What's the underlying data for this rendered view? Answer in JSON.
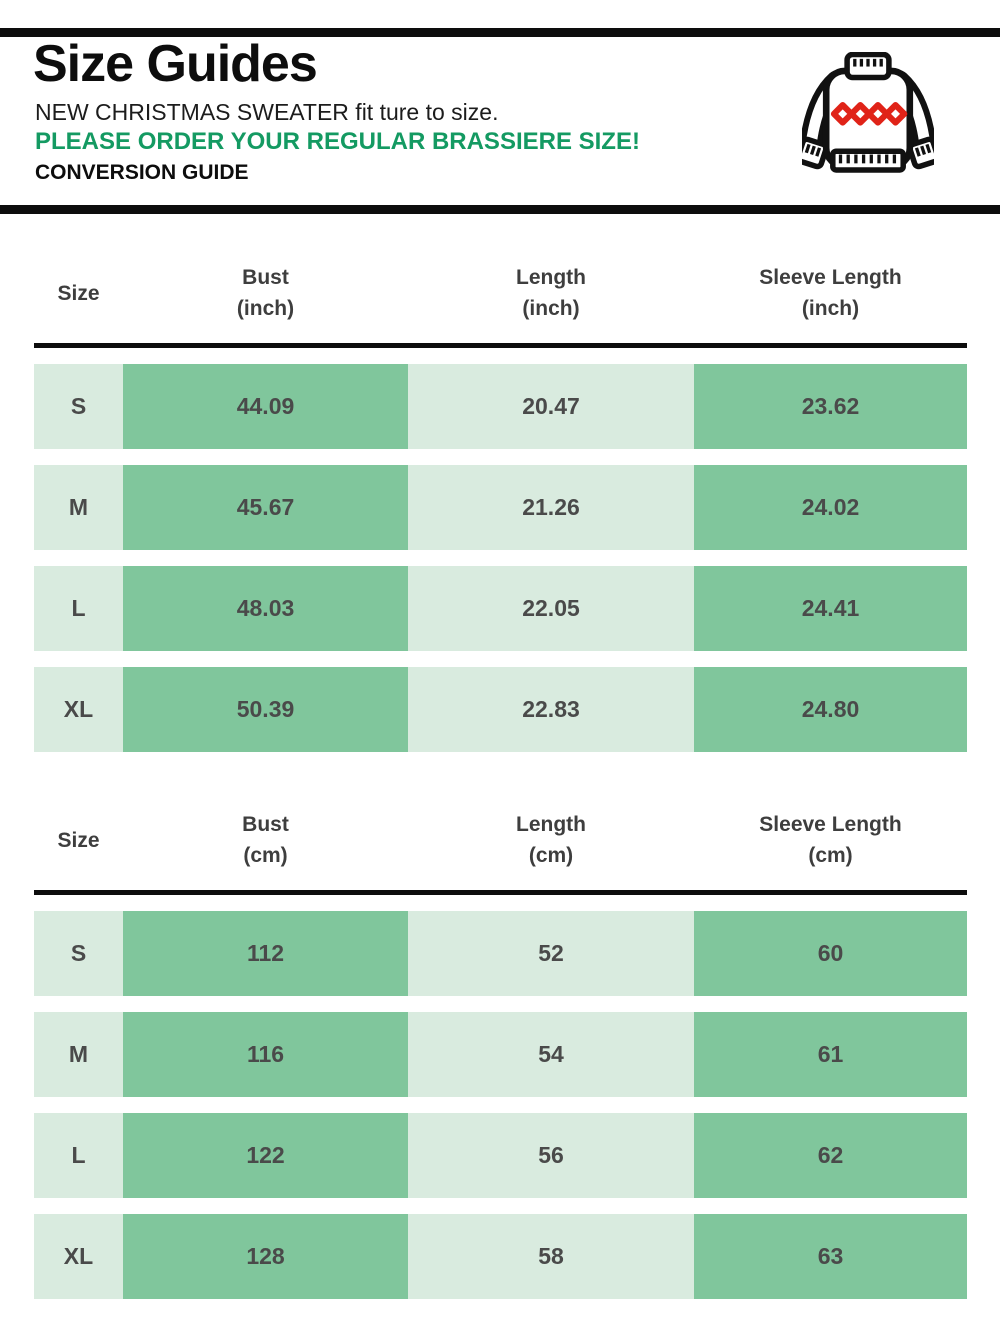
{
  "colors": {
    "green_dark_cell": "#80c69c",
    "green_light_cell": "#d9ebdf",
    "green_highlight_text": "#149a62",
    "divider_black": "#0d0d0d",
    "cell_text": "#4a4a4a",
    "sweater_red": "#e02318"
  },
  "header": {
    "title": "Size Guides",
    "fit_note": "NEW CHRISTMAS SWEATER fit ture to size.",
    "order_note": "PLEASE ORDER YOUR REGULAR BRASSIERE SIZE!",
    "conversion_label": "CONVERSION GUIDE",
    "icon": "christmas-sweater-icon"
  },
  "tables": [
    {
      "id": "inch",
      "columns": [
        {
          "label": "Size",
          "unit": ""
        },
        {
          "label": "Bust",
          "unit": "(inch)"
        },
        {
          "label": "Length",
          "unit": "(inch)"
        },
        {
          "label": "Sleeve Length",
          "unit": "(inch)"
        }
      ],
      "rows": [
        {
          "size": "S",
          "values": [
            "44.09",
            "20.47",
            "23.62"
          ]
        },
        {
          "size": "M",
          "values": [
            "45.67",
            "21.26",
            "24.02"
          ]
        },
        {
          "size": "L",
          "values": [
            "48.03",
            "22.05",
            "24.41"
          ]
        },
        {
          "size": "XL",
          "values": [
            "50.39",
            "22.83",
            "24.80"
          ]
        }
      ]
    },
    {
      "id": "cm",
      "columns": [
        {
          "label": "Size",
          "unit": ""
        },
        {
          "label": "Bust",
          "unit": "(cm)"
        },
        {
          "label": "Length",
          "unit": "(cm)"
        },
        {
          "label": "Sleeve Length",
          "unit": "(cm)"
        }
      ],
      "rows": [
        {
          "size": "S",
          "values": [
            "112",
            "52",
            "60"
          ]
        },
        {
          "size": "M",
          "values": [
            "116",
            "54",
            "61"
          ]
        },
        {
          "size": "L",
          "values": [
            "122",
            "56",
            "62"
          ]
        },
        {
          "size": "XL",
          "values": [
            "128",
            "58",
            "63"
          ]
        }
      ]
    }
  ]
}
